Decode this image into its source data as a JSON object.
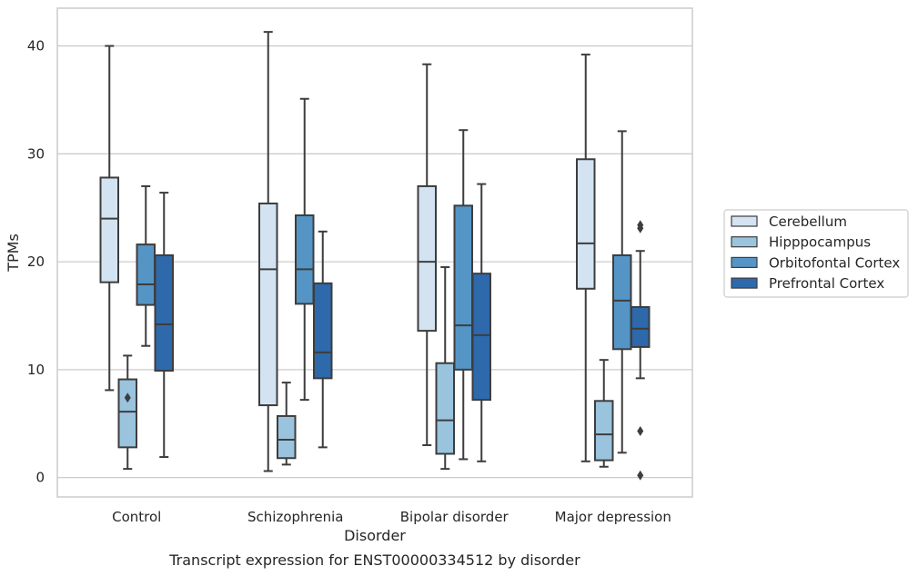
{
  "chart_data": {
    "type": "box",
    "title": "",
    "caption": "Transcript expression for ENST00000334512 by disorder",
    "xlabel": "Disorder",
    "ylabel": "TPMs",
    "ylim": [
      -1.8,
      43.5
    ],
    "yticks": [
      0,
      10,
      20,
      30,
      40
    ],
    "grid": "horizontal",
    "legend_position": "right",
    "categories": [
      "Control",
      "Schizophrenia",
      "Bipolar disorder",
      "Major depression"
    ],
    "series": [
      {
        "name": "Cerebellum",
        "color": "#d4e3f2",
        "boxes": [
          {
            "min": 8.1,
            "q1": 18.1,
            "median": 24.0,
            "q3": 27.8,
            "max": 40.0,
            "outliers": []
          },
          {
            "min": 0.6,
            "q1": 6.7,
            "median": 19.3,
            "q3": 25.4,
            "max": 41.3,
            "outliers": []
          },
          {
            "min": 3.0,
            "q1": 13.6,
            "median": 20.0,
            "q3": 27.0,
            "max": 38.3,
            "outliers": []
          },
          {
            "min": 1.5,
            "q1": 17.5,
            "median": 21.7,
            "q3": 29.5,
            "max": 39.2,
            "outliers": []
          }
        ]
      },
      {
        "name": "Hipppocampus",
        "color": "#9ac4de",
        "boxes": [
          {
            "min": 0.8,
            "q1": 2.8,
            "median": 6.1,
            "q3": 9.1,
            "max": 11.3,
            "outliers": [
              7.4
            ]
          },
          {
            "min": 1.2,
            "q1": 1.8,
            "median": 3.5,
            "q3": 5.7,
            "max": 8.8,
            "outliers": []
          },
          {
            "min": 0.8,
            "q1": 2.2,
            "median": 5.3,
            "q3": 10.6,
            "max": 19.5,
            "outliers": []
          },
          {
            "min": 1.0,
            "q1": 1.6,
            "median": 4.0,
            "q3": 7.1,
            "max": 10.9,
            "outliers": []
          }
        ]
      },
      {
        "name": "Orbitofontal Cortex",
        "color": "#5495c6",
        "boxes": [
          {
            "min": 12.2,
            "q1": 16.0,
            "median": 17.9,
            "q3": 21.6,
            "max": 27.0,
            "outliers": []
          },
          {
            "min": 7.2,
            "q1": 16.1,
            "median": 19.3,
            "q3": 24.3,
            "max": 35.1,
            "outliers": []
          },
          {
            "min": 1.7,
            "q1": 10.0,
            "median": 14.1,
            "q3": 25.2,
            "max": 32.2,
            "outliers": []
          },
          {
            "min": 2.3,
            "q1": 11.9,
            "median": 16.4,
            "q3": 20.6,
            "max": 32.1,
            "outliers": []
          }
        ]
      },
      {
        "name": "Prefrontal Cortex",
        "color": "#2d69ab",
        "boxes": [
          {
            "min": 1.9,
            "q1": 9.9,
            "median": 14.2,
            "q3": 20.6,
            "max": 26.4,
            "outliers": []
          },
          {
            "min": 2.8,
            "q1": 9.2,
            "median": 11.6,
            "q3": 18.0,
            "max": 22.8,
            "outliers": []
          },
          {
            "min": 1.5,
            "q1": 7.2,
            "median": 13.2,
            "q3": 18.9,
            "max": 27.2,
            "outliers": []
          },
          {
            "min": 9.2,
            "q1": 12.1,
            "median": 13.8,
            "q3": 15.8,
            "max": 21.0,
            "outliers": [
              23.1,
              23.4,
              4.3,
              0.2
            ]
          }
        ]
      }
    ]
  }
}
